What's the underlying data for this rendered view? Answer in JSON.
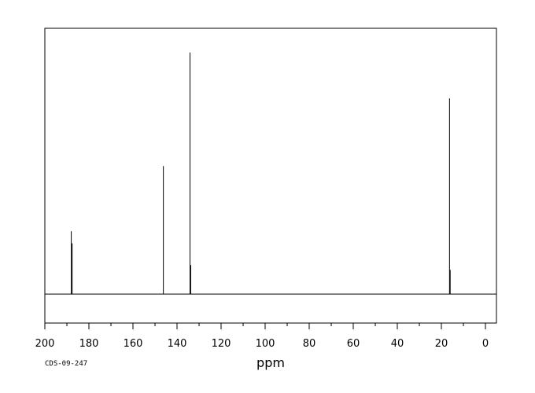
{
  "chart_data": {
    "type": "line",
    "xlabel": "ppm",
    "xlim": [
      200,
      -5
    ],
    "x_reversed": true,
    "ylim": [
      -0.12,
      1.1
    ],
    "grid": false,
    "x_ticks": [
      200,
      180,
      160,
      140,
      120,
      100,
      80,
      60,
      40,
      20,
      0
    ],
    "x_tick_labels": [
      "200",
      "180",
      "160",
      "140",
      "120",
      "100",
      "80",
      "60",
      "40",
      "20",
      "0"
    ],
    "peaks": [
      {
        "ppm": 188.0,
        "intensity": 0.26
      },
      {
        "ppm": 187.6,
        "intensity": 0.21
      },
      {
        "ppm": 146.2,
        "intensity": 0.53
      },
      {
        "ppm": 134.1,
        "intensity": 1.0
      },
      {
        "ppm": 133.8,
        "intensity": 0.12
      },
      {
        "ppm": 16.3,
        "intensity": 0.81
      },
      {
        "ppm": 16.0,
        "intensity": 0.1
      }
    ],
    "baseline": 0
  },
  "footer": {
    "code": "CDS-09-247"
  }
}
